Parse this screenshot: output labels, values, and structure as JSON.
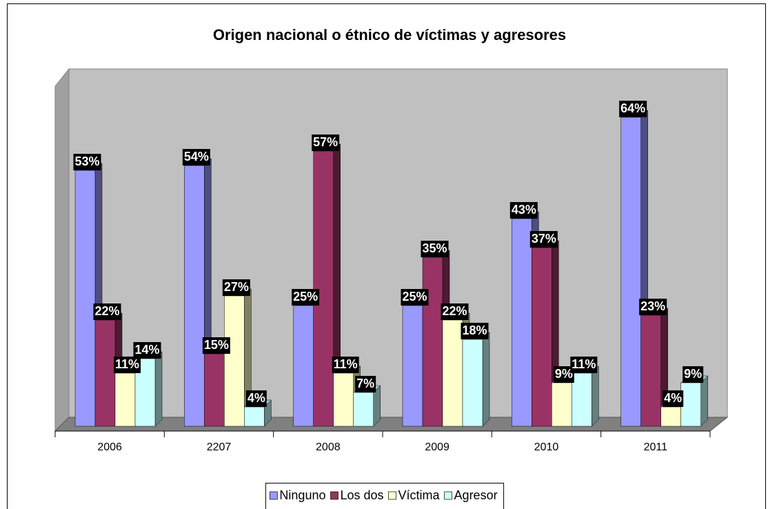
{
  "chart_data": {
    "type": "bar3d",
    "title": "Origen nacional o étnico de víctimas y agresores",
    "categories": [
      "2006",
      "2207",
      "2008",
      "2009",
      "2010",
      "2011"
    ],
    "series": [
      {
        "name": "Ninguno",
        "color": "#9999ff",
        "values": [
          53,
          54,
          25,
          25,
          43,
          64
        ],
        "value_labels": [
          "53%",
          "54%",
          "25%",
          "25%",
          "43%",
          "64%"
        ]
      },
      {
        "name": "Los dos",
        "color": "#993366",
        "values": [
          22,
          15,
          57,
          35,
          37,
          23
        ],
        "value_labels": [
          "22%",
          "15%",
          "57%",
          "35%",
          "37%",
          "23%"
        ]
      },
      {
        "name": "Víctima",
        "color": "#ffffcc",
        "values": [
          11,
          27,
          11,
          22,
          9,
          4
        ],
        "value_labels": [
          "11%",
          "27%",
          "11%",
          "22%",
          "9%",
          "4%"
        ]
      },
      {
        "name": "Agresor",
        "color": "#ccffff",
        "values": [
          14,
          4,
          7,
          18,
          11,
          9
        ],
        "value_labels": [
          "14%",
          "4%",
          "7%",
          "18%",
          "11%",
          "9%"
        ]
      }
    ],
    "legend": "bottom"
  }
}
